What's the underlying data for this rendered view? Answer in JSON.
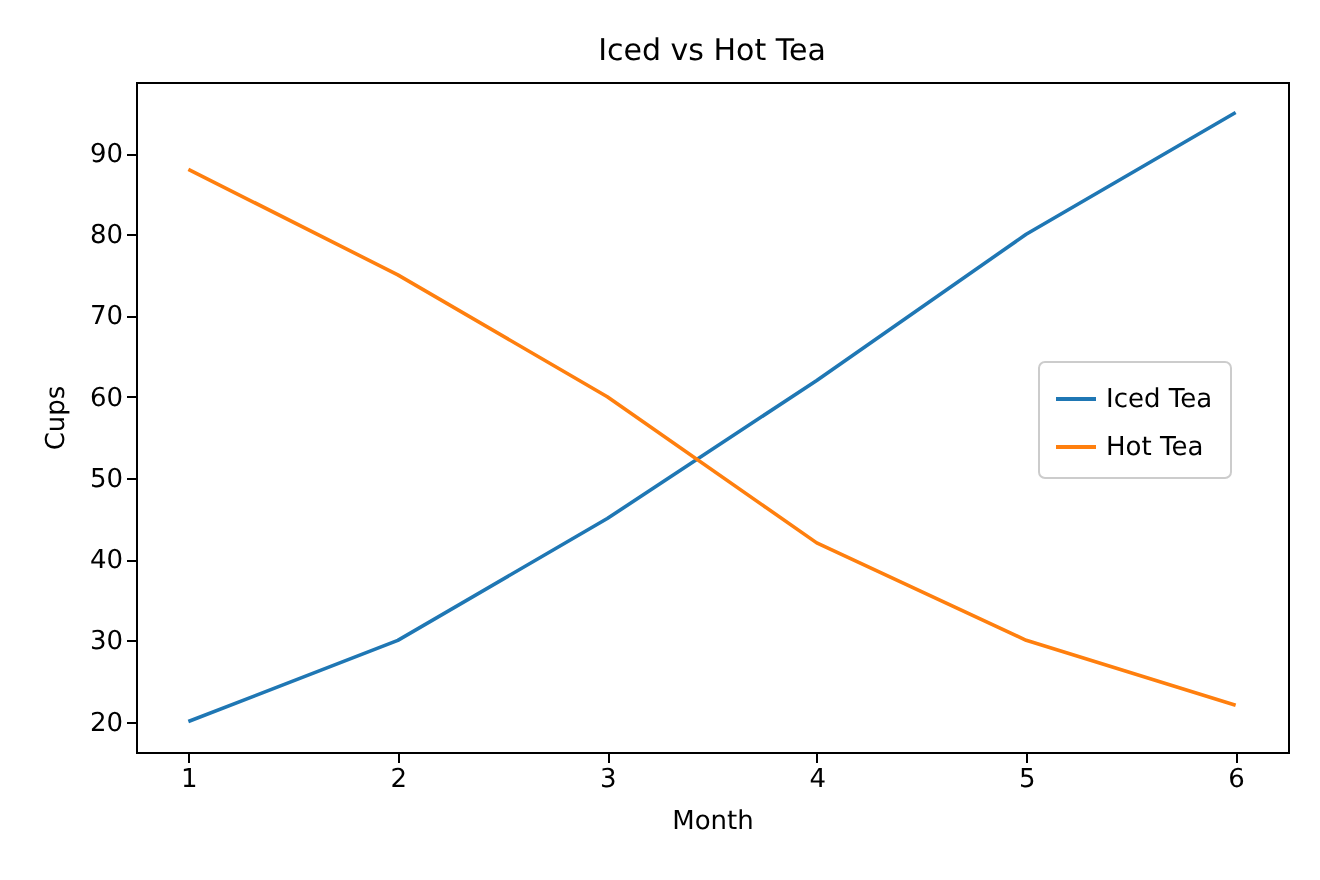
{
  "chart_data": {
    "type": "line",
    "title": "Iced vs Hot Tea",
    "xlabel": "Month",
    "ylabel": "Cups",
    "x": [
      1,
      2,
      3,
      4,
      5,
      6
    ],
    "series": [
      {
        "name": "Iced Tea",
        "color": "#1f77b4",
        "values": [
          20,
          30,
          45,
          62,
          80,
          95
        ]
      },
      {
        "name": "Hot Tea",
        "color": "#ff7f0e",
        "values": [
          88,
          75,
          60,
          42,
          30,
          22
        ]
      }
    ],
    "xlim": [
      0.75,
      6.25
    ],
    "xticks": [
      1,
      2,
      3,
      4,
      5,
      6
    ],
    "ylim": [
      16.25,
      98.75
    ],
    "yticks": [
      20,
      30,
      40,
      50,
      60,
      70,
      80,
      90
    ],
    "grid": false,
    "legend": "right",
    "line_style": "solid"
  }
}
